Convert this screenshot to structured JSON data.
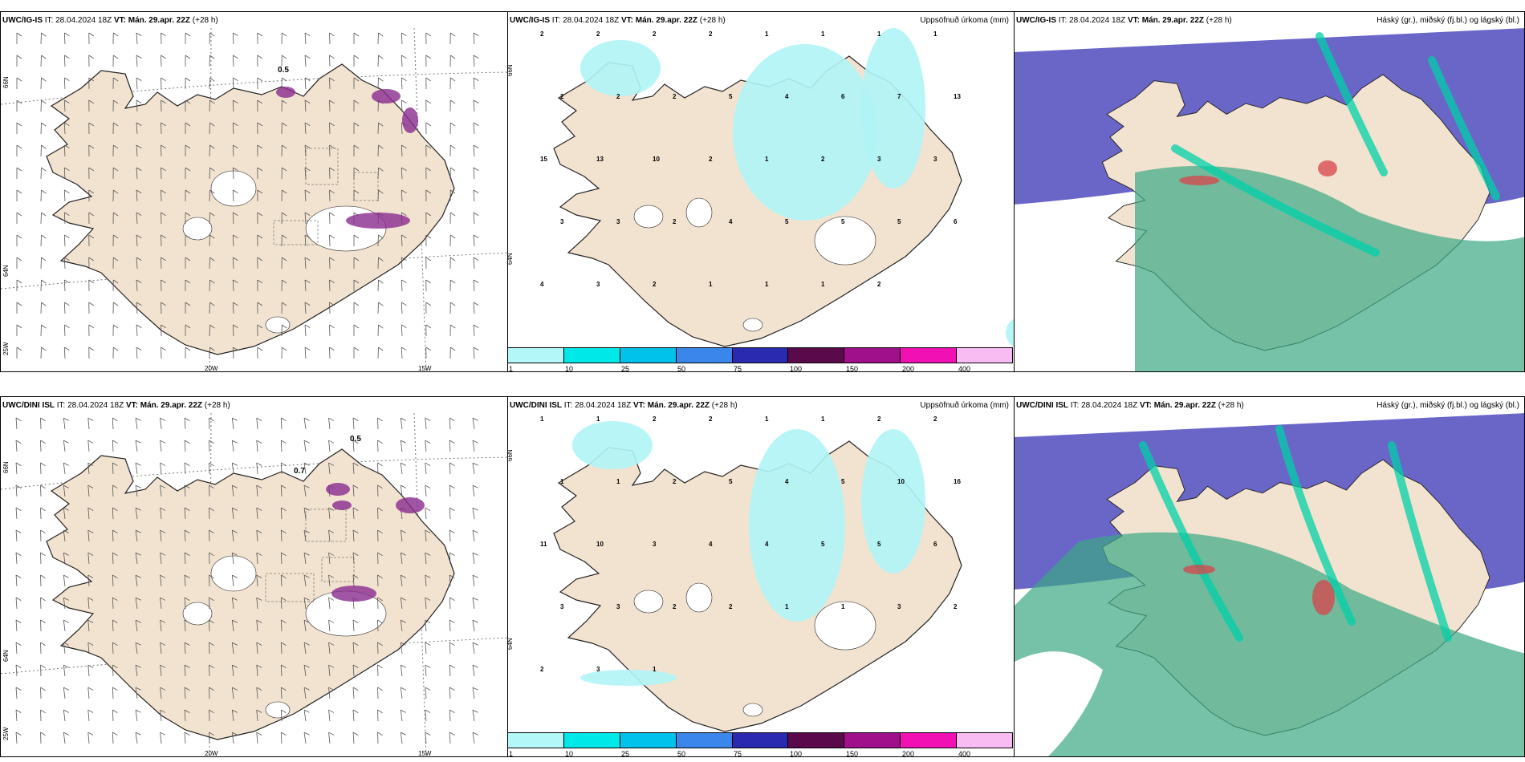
{
  "rows": [
    {
      "model": "UWC/IG-IS",
      "it_label": "IT:",
      "it": "28.04.2024 18Z",
      "vt_label": "VT:",
      "vt": "Mán. 29.apr. 22Z",
      "lead": "(+28 h)"
    },
    {
      "model": "UWC/DINI ISL",
      "it_label": "IT:",
      "it": "28.04.2024 18Z",
      "vt_label": "VT:",
      "vt": "Mán. 29.apr. 22Z",
      "lead": "(+28 h)"
    }
  ],
  "precip_title": "Uppsöfnuð úrkoma (mm)",
  "cloud_title": "Háský (gr.), miðský (fj.bl.) og lágský (bl.)",
  "wind_map": {
    "lon_labels": [
      "20W",
      "15W"
    ],
    "lat_labels": [
      "66N",
      "64N",
      "25W"
    ],
    "ig_labels": [
      "0.5"
    ],
    "dini_labels": [
      "0.5",
      "0.7"
    ]
  },
  "precip_map": {
    "lat_labels": [
      "66N",
      "64N"
    ],
    "ig_values": [
      "2",
      "2",
      "2",
      "2",
      "1",
      "1",
      "1",
      "1",
      "2",
      "2",
      "2",
      "5",
      "4",
      "6",
      "7",
      "13",
      "15",
      "13",
      "10",
      "2",
      "1",
      "2",
      "3",
      "3",
      "3",
      "3",
      "2",
      "4",
      "5",
      "5",
      "5",
      "6",
      "4",
      "3",
      "2",
      "1",
      "1",
      "1",
      "2"
    ],
    "dini_values": [
      "1",
      "1",
      "2",
      "2",
      "1",
      "1",
      "2",
      "2",
      "1",
      "1",
      "2",
      "5",
      "4",
      "5",
      "10",
      "16",
      "11",
      "10",
      "3",
      "4",
      "4",
      "5",
      "5",
      "6",
      "3",
      "3",
      "2",
      "2",
      "1",
      "1",
      "3",
      "2",
      "2",
      "3",
      "1"
    ]
  },
  "colorbar": {
    "ticks": [
      "1",
      "10",
      "25",
      "50",
      "75",
      "100",
      "150",
      "200",
      "400"
    ],
    "colors": [
      "#b3f7f9",
      "#00e8e8",
      "#00c2ea",
      "#3a86ea",
      "#2a2ab0",
      "#5a0a4a",
      "#a0108a",
      "#f010b4",
      "#f8bcf2"
    ]
  },
  "colors": {
    "land": "#f2e3d0",
    "coast": "#222222",
    "precip_light": "#b0f4f6",
    "high_cloud": "#5a55c2",
    "mid_cloud": "#3aa884",
    "low_cloud": "#00d0a8",
    "wind_accent": "#8a2a8e"
  }
}
